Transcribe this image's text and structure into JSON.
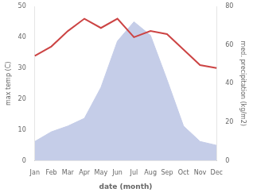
{
  "chart_data": {
    "type": "line",
    "categories": [
      "Jan",
      "Feb",
      "Mar",
      "Apr",
      "May",
      "Jun",
      "Jul",
      "Aug",
      "Sep",
      "Oct",
      "Nov",
      "Dec"
    ],
    "series": [
      {
        "type": "area",
        "axis": "y2",
        "color": "#c5cde8",
        "values": [
          10,
          15,
          18,
          22,
          38,
          62,
          72,
          65,
          42,
          18,
          10,
          8
        ]
      },
      {
        "type": "line",
        "color": "#cc4444",
        "values": [
          34,
          37,
          42,
          46,
          43,
          46,
          40,
          42,
          41,
          36,
          31,
          30
        ]
      }
    ],
    "xlabel": "date (month)",
    "ylabel": "max temp (C)",
    "y2label": "med. precipitation (kg/m2)",
    "ylim": [
      0,
      50
    ],
    "yticks": [
      0,
      10,
      20,
      30,
      40,
      50
    ],
    "y2lim": [
      0,
      80
    ],
    "y2ticks": [
      0,
      20,
      40,
      60,
      80
    ],
    "grid": false
  }
}
